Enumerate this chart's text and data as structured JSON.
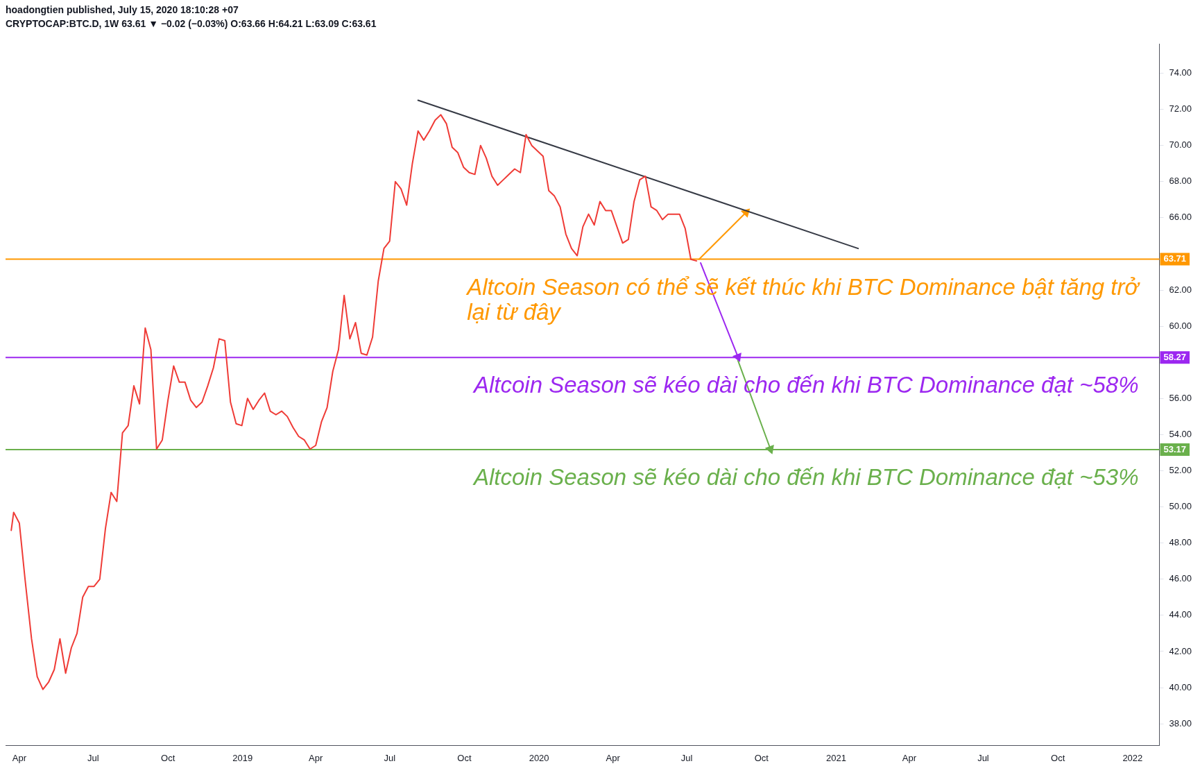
{
  "chart_data": {
    "type": "line",
    "title": "hoadongtien published, July 15, 2020 18:10:28 +07",
    "subtitle": "CRYPTOCAP:BTC.D, 1W 63.61 ▼ −0.02 (−0.03%) O:63.66 H:64.21 L:63.09 C:63.61",
    "xlim": [
      "2018-03-15",
      "2022-02-03"
    ],
    "xticks": [
      {
        "value": "2018-04",
        "label": "Apr"
      },
      {
        "value": "2018-07",
        "label": "Jul"
      },
      {
        "value": "2018-10",
        "label": "Oct"
      },
      {
        "value": "2019-01",
        "label": "2019"
      },
      {
        "value": "2019-04",
        "label": "Apr"
      },
      {
        "value": "2019-07",
        "label": "Jul"
      },
      {
        "value": "2019-10",
        "label": "Oct"
      },
      {
        "value": "2020-01",
        "label": "2020"
      },
      {
        "value": "2020-04",
        "label": "Apr"
      },
      {
        "value": "2020-07",
        "label": "Jul"
      },
      {
        "value": "2020-10",
        "label": "Oct"
      },
      {
        "value": "2021-01",
        "label": "2021"
      },
      {
        "value": "2021-04",
        "label": "Apr"
      },
      {
        "value": "2021-07",
        "label": "Jul"
      },
      {
        "value": "2021-10",
        "label": "Oct"
      },
      {
        "value": "2022-01",
        "label": "2022"
      }
    ],
    "ylim": [
      36.8,
      75.6
    ],
    "yticks": [
      {
        "value": 38,
        "label": "38.00"
      },
      {
        "value": 40,
        "label": "40.00"
      },
      {
        "value": 42,
        "label": "42.00"
      },
      {
        "value": 44,
        "label": "44.00"
      },
      {
        "value": 46,
        "label": "46.00"
      },
      {
        "value": 48,
        "label": "48.00"
      },
      {
        "value": 50,
        "label": "50.00"
      },
      {
        "value": 52,
        "label": "52.00"
      },
      {
        "value": 54,
        "label": "54.00"
      },
      {
        "value": 56,
        "label": "56.00"
      },
      {
        "value": 58,
        "label": null
      },
      {
        "value": 60,
        "label": "60.00"
      },
      {
        "value": 62,
        "label": "62.00"
      },
      {
        "value": 64,
        "label": null
      },
      {
        "value": 66,
        "label": "66.00"
      },
      {
        "value": 68,
        "label": "68.00"
      },
      {
        "value": 70,
        "label": "70.00"
      },
      {
        "value": 72,
        "label": "72.00"
      },
      {
        "value": 74,
        "label": "74.00"
      }
    ],
    "grid": false,
    "legend": false,
    "series": [
      {
        "color": "#ef3b36",
        "x": [
          "2018-03-22",
          "2018-03-25",
          "2018-04-01",
          "2018-04-08",
          "2018-04-16",
          "2018-04-23",
          "2018-04-30",
          "2018-05-07",
          "2018-05-14",
          "2018-05-21",
          "2018-05-28",
          "2018-06-04",
          "2018-06-11",
          "2018-06-18",
          "2018-06-25",
          "2018-07-02",
          "2018-07-09",
          "2018-07-16",
          "2018-07-23",
          "2018-07-30",
          "2018-08-06",
          "2018-08-13",
          "2018-08-20",
          "2018-08-27",
          "2018-09-03",
          "2018-09-10",
          "2018-09-17",
          "2018-09-24",
          "2018-10-01",
          "2018-10-08",
          "2018-10-15",
          "2018-10-22",
          "2018-10-29",
          "2018-11-05",
          "2018-11-12",
          "2018-11-19",
          "2018-11-26",
          "2018-12-03",
          "2018-12-10",
          "2018-12-17",
          "2018-12-24",
          "2018-12-31",
          "2019-01-07",
          "2019-01-14",
          "2019-01-21",
          "2019-01-28",
          "2019-02-04",
          "2019-02-11",
          "2019-02-18",
          "2019-02-25",
          "2019-03-04",
          "2019-03-11",
          "2019-03-18",
          "2019-03-25",
          "2019-04-01",
          "2019-04-08",
          "2019-04-15",
          "2019-04-22",
          "2019-04-29",
          "2019-05-06",
          "2019-05-13",
          "2019-05-20",
          "2019-05-27",
          "2019-06-03",
          "2019-06-10",
          "2019-06-17",
          "2019-06-24",
          "2019-07-01",
          "2019-07-08",
          "2019-07-15",
          "2019-07-22",
          "2019-07-29",
          "2019-08-05",
          "2019-08-12",
          "2019-08-19",
          "2019-08-26",
          "2019-09-02",
          "2019-09-09",
          "2019-09-16",
          "2019-09-23",
          "2019-09-30",
          "2019-10-07",
          "2019-10-14",
          "2019-10-21",
          "2019-10-28",
          "2019-11-04",
          "2019-11-11",
          "2019-11-18",
          "2019-11-25",
          "2019-12-02",
          "2019-12-09",
          "2019-12-16",
          "2019-12-23",
          "2019-12-30",
          "2020-01-06",
          "2020-01-13",
          "2020-01-20",
          "2020-01-27",
          "2020-02-03",
          "2020-02-10",
          "2020-02-17",
          "2020-02-24",
          "2020-03-02",
          "2020-03-09",
          "2020-03-16",
          "2020-03-23",
          "2020-03-30",
          "2020-04-06",
          "2020-04-13",
          "2020-04-20",
          "2020-04-27",
          "2020-05-04",
          "2020-05-11",
          "2020-05-18",
          "2020-05-25",
          "2020-06-01",
          "2020-06-08",
          "2020-06-15",
          "2020-06-22",
          "2020-06-29",
          "2020-07-06",
          "2020-07-13"
        ],
        "values": [
          48.7,
          49.7,
          49.1,
          46.0,
          42.7,
          40.6,
          39.9,
          40.3,
          41.0,
          42.7,
          40.8,
          42.2,
          43.0,
          45.0,
          45.6,
          45.6,
          46.0,
          48.8,
          50.8,
          50.3,
          54.1,
          54.5,
          56.7,
          55.7,
          59.9,
          58.7,
          53.2,
          53.7,
          55.9,
          57.8,
          56.9,
          56.9,
          55.9,
          55.5,
          55.8,
          56.7,
          57.7,
          59.3,
          59.2,
          55.8,
          54.6,
          54.5,
          56.0,
          55.4,
          55.9,
          56.3,
          55.3,
          55.1,
          55.3,
          55.0,
          54.4,
          53.9,
          53.7,
          53.2,
          53.4,
          54.7,
          55.5,
          57.5,
          58.7,
          61.7,
          59.3,
          60.2,
          58.5,
          58.4,
          59.4,
          62.5,
          64.3,
          64.7,
          68.0,
          67.6,
          66.7,
          69.0,
          70.8,
          70.3,
          70.8,
          71.4,
          71.7,
          71.2,
          69.9,
          69.6,
          68.8,
          68.5,
          68.4,
          70.0,
          69.3,
          68.3,
          67.8,
          68.1,
          68.4,
          68.7,
          68.5,
          70.6,
          70.0,
          69.7,
          69.4,
          67.5,
          67.2,
          66.6,
          65.1,
          64.3,
          63.9,
          65.5,
          66.2,
          65.6,
          66.9,
          66.4,
          66.4,
          65.5,
          64.6,
          64.8,
          66.9,
          68.1,
          68.3,
          66.6,
          66.4,
          65.9,
          66.2,
          66.2,
          66.2,
          65.4,
          63.7,
          63.61
        ]
      },
      {
        "type": "line",
        "color": "#363a45",
        "x": [
          "2019-08-05",
          "2021-01-28"
        ],
        "values": [
          72.5,
          64.3
        ]
      },
      {
        "type": "line",
        "color": "#ff9800",
        "marker": "triangle",
        "x": [
          "2020-07-16",
          "2020-09-12"
        ],
        "values": [
          63.7,
          66.3
        ]
      },
      {
        "type": "line",
        "color": "#9c27f0",
        "marker": "triangle",
        "x": [
          "2020-07-18",
          "2020-09-02"
        ],
        "values": [
          63.5,
          58.3
        ]
      },
      {
        "type": "line",
        "color": "#6ab04c",
        "marker": "triangle",
        "x": [
          "2020-09-02",
          "2020-10-12"
        ],
        "values": [
          58.1,
          53.2
        ]
      }
    ],
    "ref_lines": [
      {
        "axis": "y",
        "value": 63.71,
        "label": "63.71",
        "color": "#ff9800"
      },
      {
        "axis": "y",
        "value": 58.27,
        "label": "58.27",
        "color": "#9c27f0"
      },
      {
        "axis": "y",
        "value": 53.17,
        "label": "53.17",
        "color": "#6ab04c"
      }
    ],
    "annotations": [
      "Altcoin Season có thể sẽ kết thúc khi BTC Dominance bật tăng trở lại từ đây",
      "Altcoin Season sẽ kéo dài cho đến khi BTC Dominance đạt ~58%",
      "Altcoin Season sẽ kéo dài cho đến khi BTC Dominance đạt ~53%"
    ]
  }
}
